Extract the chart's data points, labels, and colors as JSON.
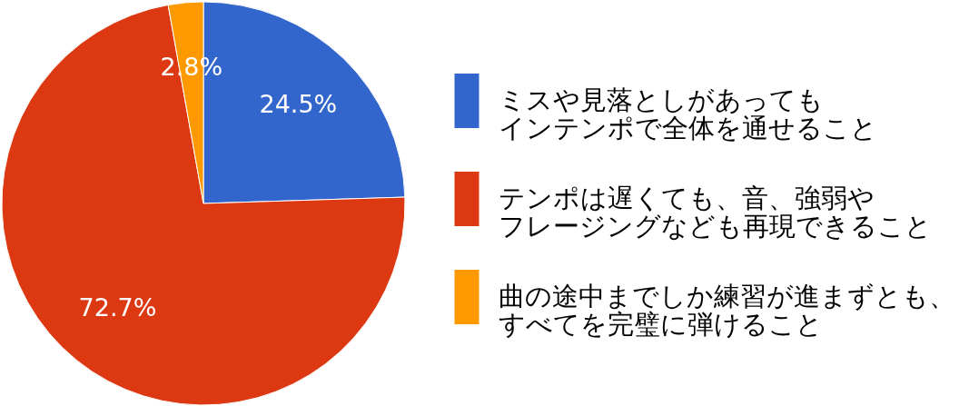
{
  "chart_data": {
    "type": "pie",
    "categories": [
      "ミスや見落としがあってもインテンポで全体を通せること",
      "テンポは遅くても、音、強弱やフレージングなども再現できること",
      "曲の途中までしか練習が進まずとも、すべてを完璧に弾けること"
    ],
    "values": [
      24.5,
      72.7,
      2.8
    ],
    "colors": [
      "#3366cc",
      "#dc3912",
      "#ff9900"
    ],
    "value_labels": [
      "24.5%",
      "72.7%",
      "2.8%"
    ],
    "legend": "right"
  }
}
